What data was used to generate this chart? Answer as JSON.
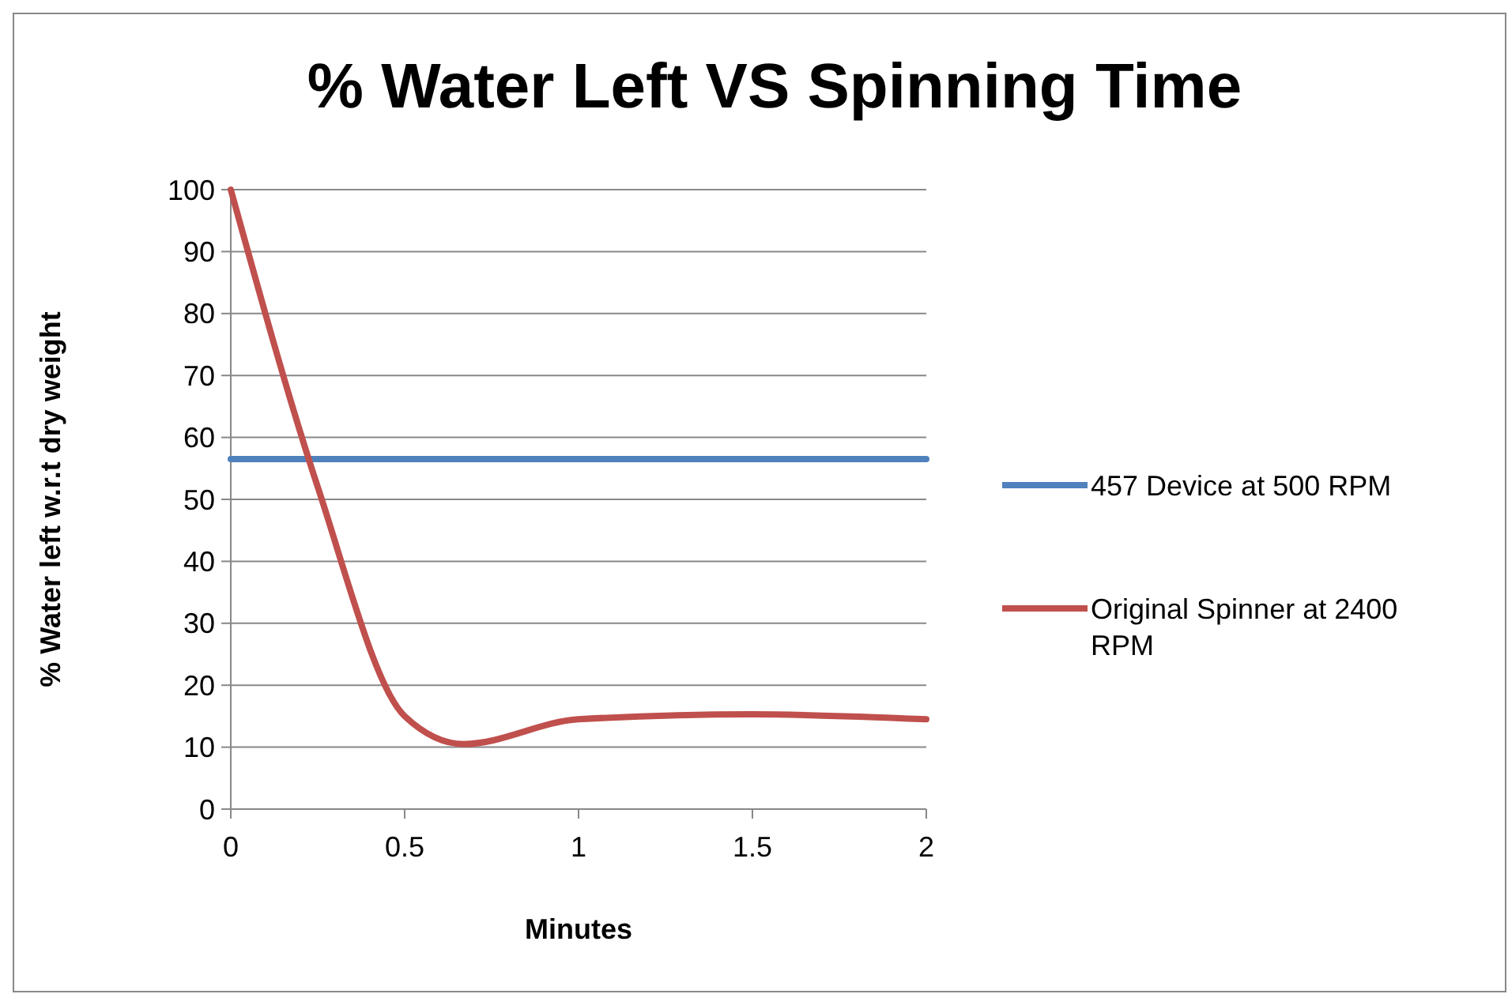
{
  "chart_data": {
    "type": "line",
    "title": "% Water Left VS Spinning Time",
    "xlabel": "Minutes",
    "ylabel": "% Water left w.r.t dry weight",
    "xlim": [
      0,
      2
    ],
    "xticks": [
      0,
      0.5,
      1,
      1.5,
      2
    ],
    "ylim": [
      0,
      100
    ],
    "yticks": [
      0,
      10,
      20,
      30,
      40,
      50,
      60,
      70,
      80,
      90,
      100
    ],
    "grid": "y",
    "legend": "right",
    "marker": "none",
    "series": [
      {
        "name": "457 Device at 500 RPM",
        "color": "#4f81bd",
        "x": [
          0,
          2
        ],
        "values": [
          56.5,
          56.5
        ]
      },
      {
        "name": "Original Spinner at 2400 RPM",
        "color": "#c0504d",
        "x": [
          0,
          0.25,
          0.5,
          0.67,
          1,
          1.5,
          2
        ],
        "values": [
          100,
          52,
          15,
          10.5,
          14.5,
          15.3,
          14.5
        ]
      }
    ]
  }
}
